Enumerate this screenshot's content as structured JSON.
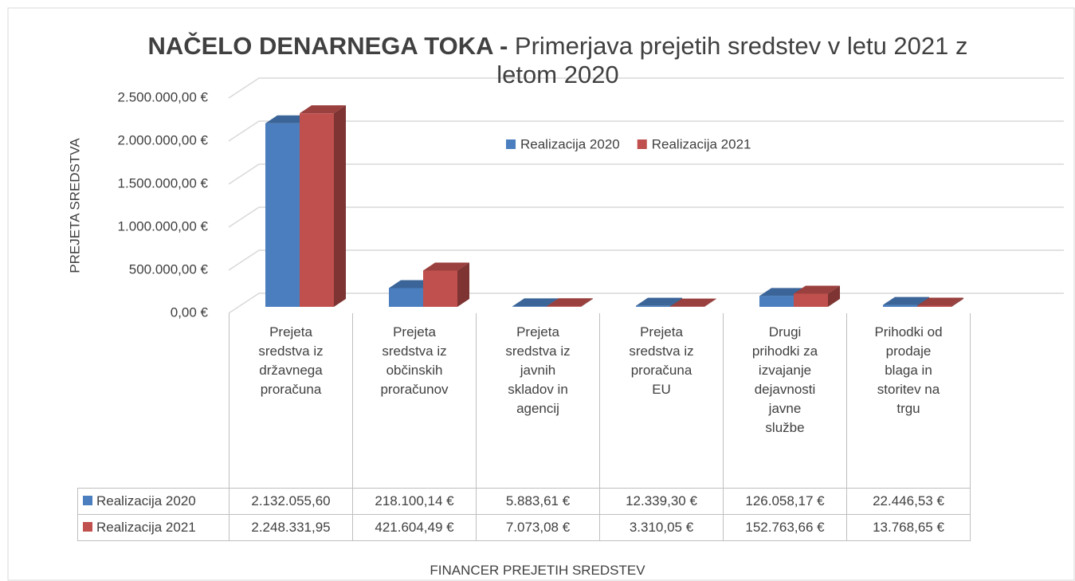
{
  "chart_data": {
    "type": "bar3d",
    "title_bold": "NAČELO DENARNEGA TOKA -",
    "title": "Primerjava prejetih sredstev v letu 2021 z letom 2020",
    "y_label": "PREJETA SREDSTVA",
    "x_label": "FINANCER PREJETIH SREDSTEV",
    "categories": [
      "Prejeta sredstva iz državnega proračuna",
      "Prejeta sredstva iz občinskih proračunov",
      "Prejeta sredstva iz javnih skladov in agencij",
      "Prejeta sredstva iz proračuna EU",
      "Drugi prihodki za izvajanje dejavnosti javne službe",
      "Prihodki od prodaje blaga in storitev na trgu"
    ],
    "series": [
      {
        "name": "Realizacija 2020",
        "color": "#4a7ebf",
        "values": [
          2132055.6,
          218100.14,
          5883.61,
          12339.3,
          126058.17,
          22446.53
        ],
        "value_labels": [
          "2.132.055,60",
          "218.100,14 €",
          "5.883,61 €",
          "12.339,30 €",
          "126.058,17 €",
          "22.446,53 €"
        ]
      },
      {
        "name": "Realizacija 2021",
        "color": "#c0504d",
        "values": [
          2248331.95,
          421604.49,
          7073.08,
          3310.05,
          152763.66,
          13768.65
        ],
        "value_labels": [
          "2.248.331,95",
          "421.604,49 €",
          "7.073,08 €",
          "3.310,05 €",
          "152.763,66 €",
          "13.768,65 €"
        ]
      }
    ],
    "ylim": [
      0,
      2500000
    ],
    "yticks": [
      {
        "value": 0,
        "label": "0,00 €"
      },
      {
        "value": 500000,
        "label": "500.000,00 €"
      },
      {
        "value": 1000000,
        "label": "1.000.000,00 €"
      },
      {
        "value": 1500000,
        "label": "1.500.000,00 €"
      },
      {
        "value": 2000000,
        "label": "2.000.000,00 €"
      },
      {
        "value": 2500000,
        "label": "2.500.000,00 €"
      }
    ],
    "grid": true,
    "legend": "top"
  }
}
